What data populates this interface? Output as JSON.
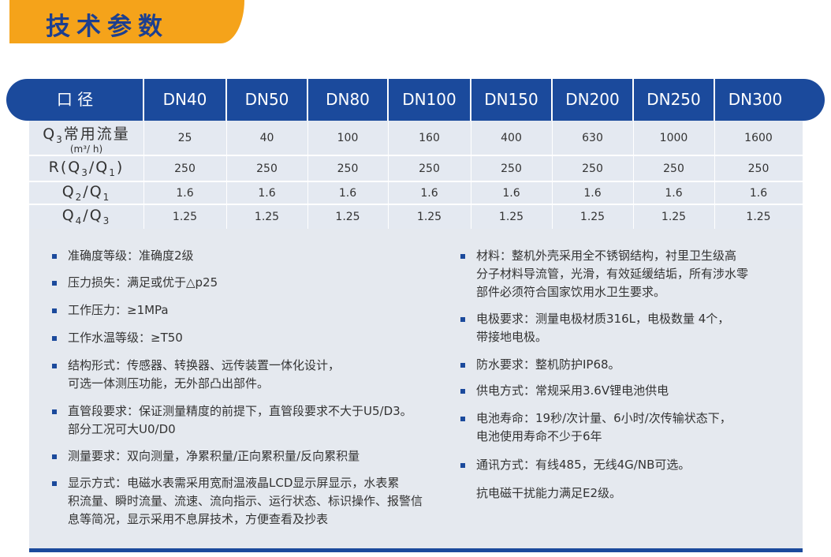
{
  "header": {
    "title": "技术参数"
  },
  "table": {
    "header": [
      "口 径",
      "DN40",
      "DN50",
      "DN80",
      "DN100",
      "DN150",
      "DN200",
      "DN250",
      "DN300"
    ],
    "rows": [
      {
        "label": [
          "Q",
          "3",
          "常用流量"
        ],
        "unit": "(m³/ h)",
        "cells": [
          25,
          40,
          100,
          160,
          400,
          630,
          1000,
          1600
        ]
      },
      {
        "label": [
          "R(Q",
          "3",
          "/Q",
          "1",
          ")"
        ],
        "cells": [
          250,
          250,
          250,
          250,
          250,
          250,
          250,
          250
        ]
      },
      {
        "label": [
          "Q",
          "2",
          "/Q",
          "1"
        ],
        "cells": [
          1.6,
          1.6,
          1.6,
          1.6,
          1.6,
          1.6,
          1.6,
          1.6
        ]
      },
      {
        "label": [
          "Q",
          "4",
          "/Q",
          "3"
        ],
        "cells": [
          1.25,
          1.25,
          1.25,
          1.25,
          1.25,
          1.25,
          1.25,
          1.25
        ]
      }
    ]
  },
  "notes": {
    "left": [
      [
        "准确度等级：准确度2级"
      ],
      [
        "压力损失：满足或优于△p25"
      ],
      [
        "工作压力：≥1MPa"
      ],
      [
        "工作水温等级：≥T50"
      ],
      [
        "结构形式：传感器、转换器、远传装置一体化设计，",
        "可选一体测压功能，无外部凸出部件。"
      ],
      [
        "直管段要求：保证测量精度的前提下，直管段要求不大于U5/D3。",
        "部分工况可大U0/D0"
      ],
      [
        "测量要求：双向测量，净累积量/正向累积量/反向累积量"
      ],
      [
        "显示方式：电磁水表需采用宽耐温液晶LCD显示屏显示，水表累",
        "积流量、瞬时流量、流速、流向指示、运行状态、标识操作、报警信",
        "息等简况，显示采用不息屏技术，方便查看及抄表"
      ]
    ],
    "right": [
      [
        "材料：整机外壳采用全不锈钢结构，衬里卫生级高",
        "分子材料导流管，光滑，有效延缓结垢，所有涉水零",
        "部件必须符合国家饮用水卫生要求。"
      ],
      [
        "电极要求：测量电极材质316L，电极数量 4个，",
        "带接地电极。"
      ],
      [
        "防水要求：整机防护IP68。"
      ],
      [
        "供电方式：常规采用3.6V锂电池供电"
      ],
      [
        "电池寿命：19秒/次计量、6小时/次传输状态下，",
        "电池使用寿命不少于6年"
      ],
      [
        "通讯方式：有线485，无线4G/NB可选。"
      ]
    ],
    "footer": "抗电磁干扰能力满足E2级。"
  }
}
